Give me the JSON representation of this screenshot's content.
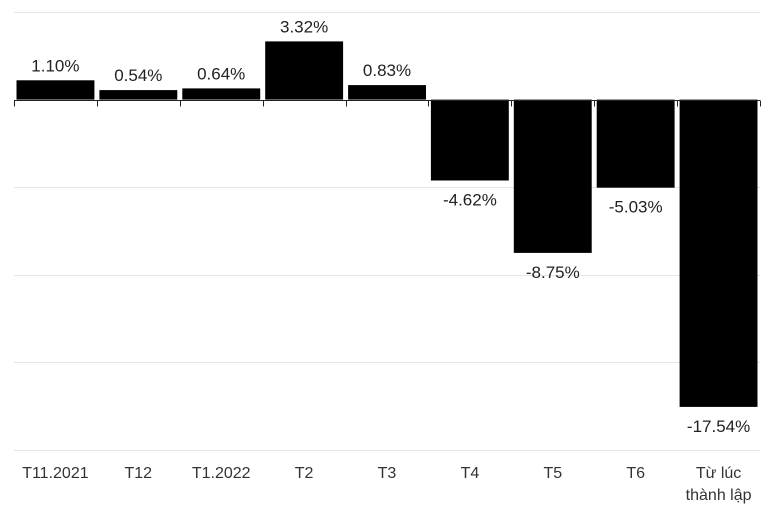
{
  "chart_data": {
    "type": "bar",
    "categories": [
      "T11.2021",
      "T12",
      "T1.2022",
      "T2",
      "T3",
      "T4",
      "T5",
      "T6",
      "Từ lúc thành lập"
    ],
    "category_lines": [
      [
        "T11.2021"
      ],
      [
        "T12"
      ],
      [
        "T1.2022"
      ],
      [
        "T2"
      ],
      [
        "T3"
      ],
      [
        "T4"
      ],
      [
        "T5"
      ],
      [
        "T6"
      ],
      [
        "Từ lúc",
        "thành lập"
      ]
    ],
    "values": [
      1.1,
      0.54,
      0.64,
      3.32,
      0.83,
      -4.62,
      -8.75,
      -5.03,
      -17.54
    ],
    "data_labels": [
      "1.10%",
      "0.54%",
      "0.64%",
      "3.32%",
      "0.83%",
      "-4.62%",
      "-8.75%",
      "-5.03%",
      "-17.54%"
    ],
    "ylim": [
      -20,
      5
    ],
    "gridlines": [
      5,
      0,
      -5,
      -10,
      -15,
      -20
    ],
    "grid": true,
    "bar_color": "#000000"
  }
}
